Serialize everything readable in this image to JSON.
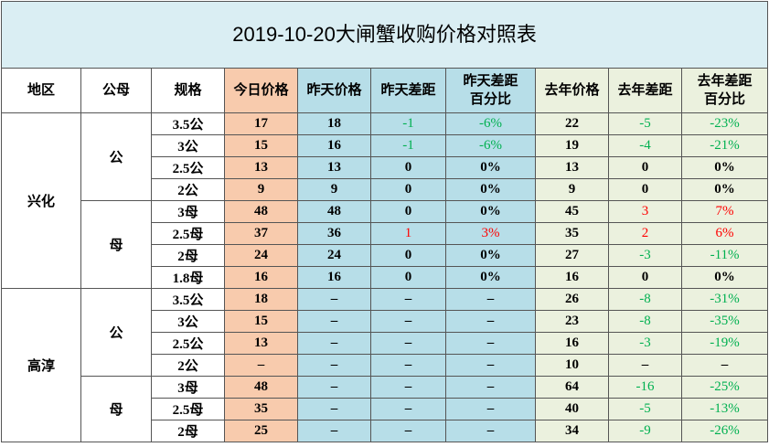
{
  "title": "2019-10-20大闸蟹收购价格对照表",
  "headers": [
    "地区",
    "公母",
    "规格",
    "今日价格",
    "昨天价格",
    "昨天差距",
    "昨天差距\n百分比",
    "去年价格",
    "去年差距",
    "去年差距\n百分比"
  ],
  "groups": [
    {
      "region": "兴化",
      "genders": [
        {
          "gender": "公",
          "rows": [
            {
              "spec": "3.5公",
              "values": [
                "17",
                "18",
                "-1",
                "-6%",
                "22",
                "-5",
                "-23%"
              ]
            },
            {
              "spec": "3公",
              "values": [
                "15",
                "16",
                "-1",
                "-6%",
                "19",
                "-4",
                "-21%"
              ]
            },
            {
              "spec": "2.5公",
              "values": [
                "13",
                "13",
                "0",
                "0%",
                "13",
                "0",
                "0%"
              ]
            },
            {
              "spec": "2公",
              "values": [
                "9",
                "9",
                "0",
                "0%",
                "9",
                "0",
                "0%"
              ]
            }
          ]
        },
        {
          "gender": "母",
          "rows": [
            {
              "spec": "3母",
              "values": [
                "48",
                "48",
                "0",
                "0%",
                "45",
                "3",
                "7%"
              ]
            },
            {
              "spec": "2.5母",
              "values": [
                "37",
                "36",
                "1",
                "3%",
                "35",
                "2",
                "6%"
              ]
            },
            {
              "spec": "2母",
              "values": [
                "24",
                "24",
                "0",
                "0%",
                "27",
                "-3",
                "-11%"
              ]
            },
            {
              "spec": "1.8母",
              "values": [
                "16",
                "16",
                "0",
                "0%",
                "16",
                "0",
                "0%"
              ]
            }
          ]
        }
      ]
    },
    {
      "region": "高淳",
      "genders": [
        {
          "gender": "公",
          "rows": [
            {
              "spec": "3.5公",
              "values": [
                "18",
                "–",
                "–",
                "–",
                "26",
                "-8",
                "-31%"
              ]
            },
            {
              "spec": "3公",
              "values": [
                "15",
                "–",
                "–",
                "–",
                "23",
                "-8",
                "-35%"
              ]
            },
            {
              "spec": "2.5公",
              "values": [
                "13",
                "–",
                "–",
                "–",
                "16",
                "-3",
                "-19%"
              ]
            },
            {
              "spec": "2公",
              "values": [
                "–",
                "–",
                "–",
                "–",
                "10",
                "–",
                "–"
              ]
            }
          ]
        },
        {
          "gender": "母",
          "rows": [
            {
              "spec": "3母",
              "values": [
                "48",
                "–",
                "–",
                "–",
                "64",
                "-16",
                "-25%"
              ]
            },
            {
              "spec": "2.5母",
              "values": [
                "35",
                "–",
                "–",
                "–",
                "40",
                "-5",
                "-13%"
              ]
            },
            {
              "spec": "2母",
              "values": [
                "25",
                "–",
                "–",
                "–",
                "34",
                "-9",
                "-26%"
              ]
            }
          ]
        }
      ]
    }
  ]
}
